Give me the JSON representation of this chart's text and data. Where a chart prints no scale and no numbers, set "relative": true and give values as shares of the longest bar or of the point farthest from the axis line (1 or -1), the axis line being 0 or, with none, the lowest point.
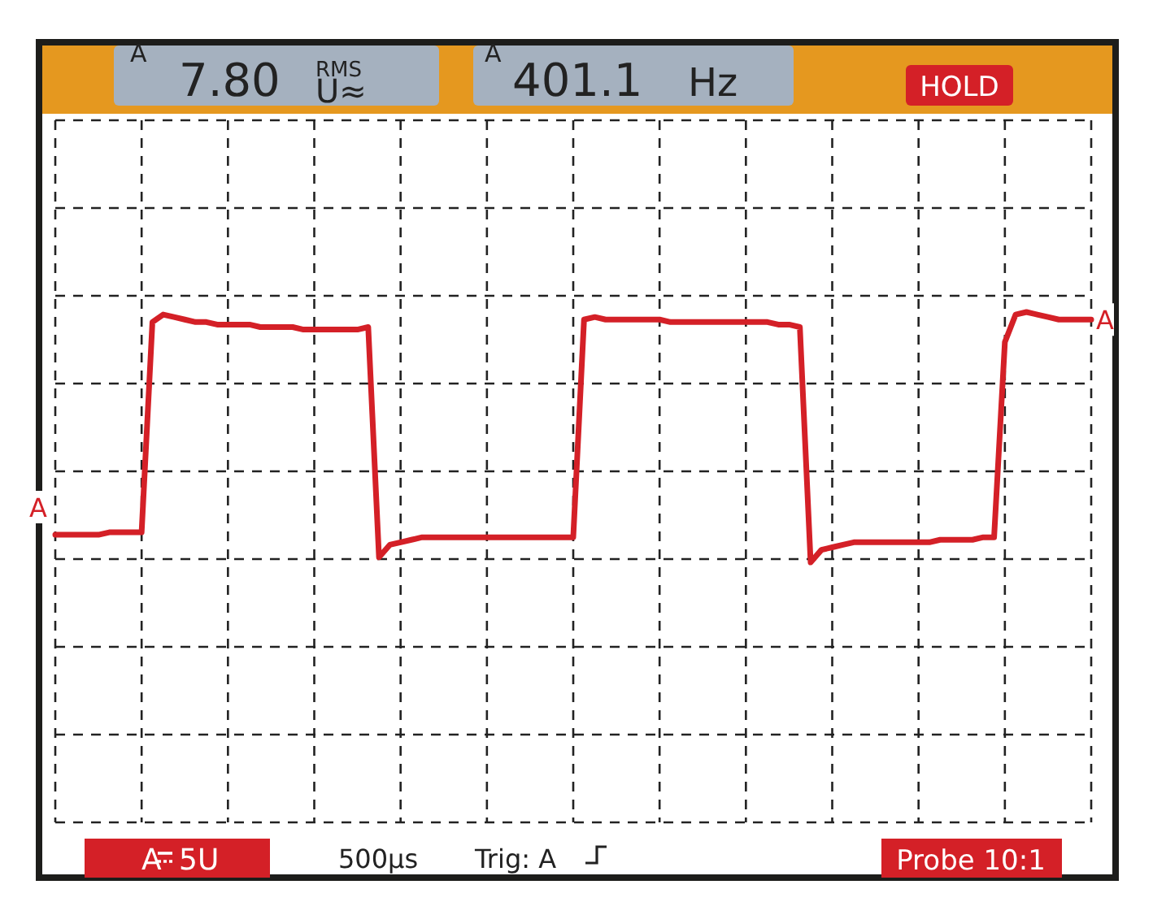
{
  "chart_data": {
    "type": "line",
    "relative": true,
    "grid": true,
    "categories": [
      null,
      null,
      null,
      null,
      null,
      null,
      null,
      null,
      null,
      null,
      null,
      null,
      null,
      null,
      null,
      null,
      null,
      null,
      null,
      null,
      null,
      null,
      null,
      null,
      null,
      null,
      null,
      null,
      null,
      null,
      null,
      null,
      null,
      null,
      null,
      null,
      null,
      null,
      null,
      null,
      null,
      null,
      null,
      null,
      null,
      null,
      null,
      null,
      null,
      null,
      null,
      null,
      null,
      null,
      null,
      null,
      null,
      null,
      null,
      null,
      null,
      null,
      null,
      null,
      null,
      null,
      null,
      null,
      null,
      null,
      null,
      null,
      null,
      null,
      null,
      null,
      null,
      null,
      null,
      null,
      null,
      null,
      null,
      null,
      null,
      null,
      null,
      null,
      null,
      null,
      null,
      null,
      null,
      null,
      null,
      null,
      null
    ],
    "annotations": [
      "A",
      "7.80",
      "RMS",
      "U≈",
      "A",
      "401.1",
      "Hz",
      "HOLD",
      "A",
      "5U",
      "500µs",
      "Trig: A",
      "Probe 10:1",
      "A"
    ],
    "series": [
      {
        "name": "A",
        "color": "#d42027",
        "values": [
          0.11,
          0.11,
          0.11,
          0.11,
          0.11,
          0.12,
          0.12,
          0.12,
          0.12,
          0.96,
          0.99,
          0.98,
          0.97,
          0.96,
          0.96,
          0.95,
          0.95,
          0.95,
          0.95,
          0.94,
          0.94,
          0.94,
          0.94,
          0.93,
          0.93,
          0.93,
          0.93,
          0.93,
          0.93,
          0.94,
          0.02,
          0.07,
          0.08,
          0.09,
          0.1,
          0.1,
          0.1,
          0.1,
          0.1,
          0.1,
          0.1,
          0.1,
          0.1,
          0.1,
          0.1,
          0.1,
          0.1,
          0.1,
          0.1,
          0.97,
          0.98,
          0.97,
          0.97,
          0.97,
          0.97,
          0.97,
          0.97,
          0.96,
          0.96,
          0.96,
          0.96,
          0.96,
          0.96,
          0.96,
          0.96,
          0.96,
          0.96,
          0.95,
          0.95,
          0.94,
          0,
          0.05,
          0.06,
          0.07,
          0.08,
          0.08,
          0.08,
          0.08,
          0.08,
          0.08,
          0.08,
          0.08,
          0.09,
          0.09,
          0.09,
          0.09,
          0.1,
          0.1,
          0.88,
          0.99,
          1,
          0.99,
          0.98,
          0.97,
          0.97,
          0.97,
          0.97
        ]
      }
    ]
  }
}
